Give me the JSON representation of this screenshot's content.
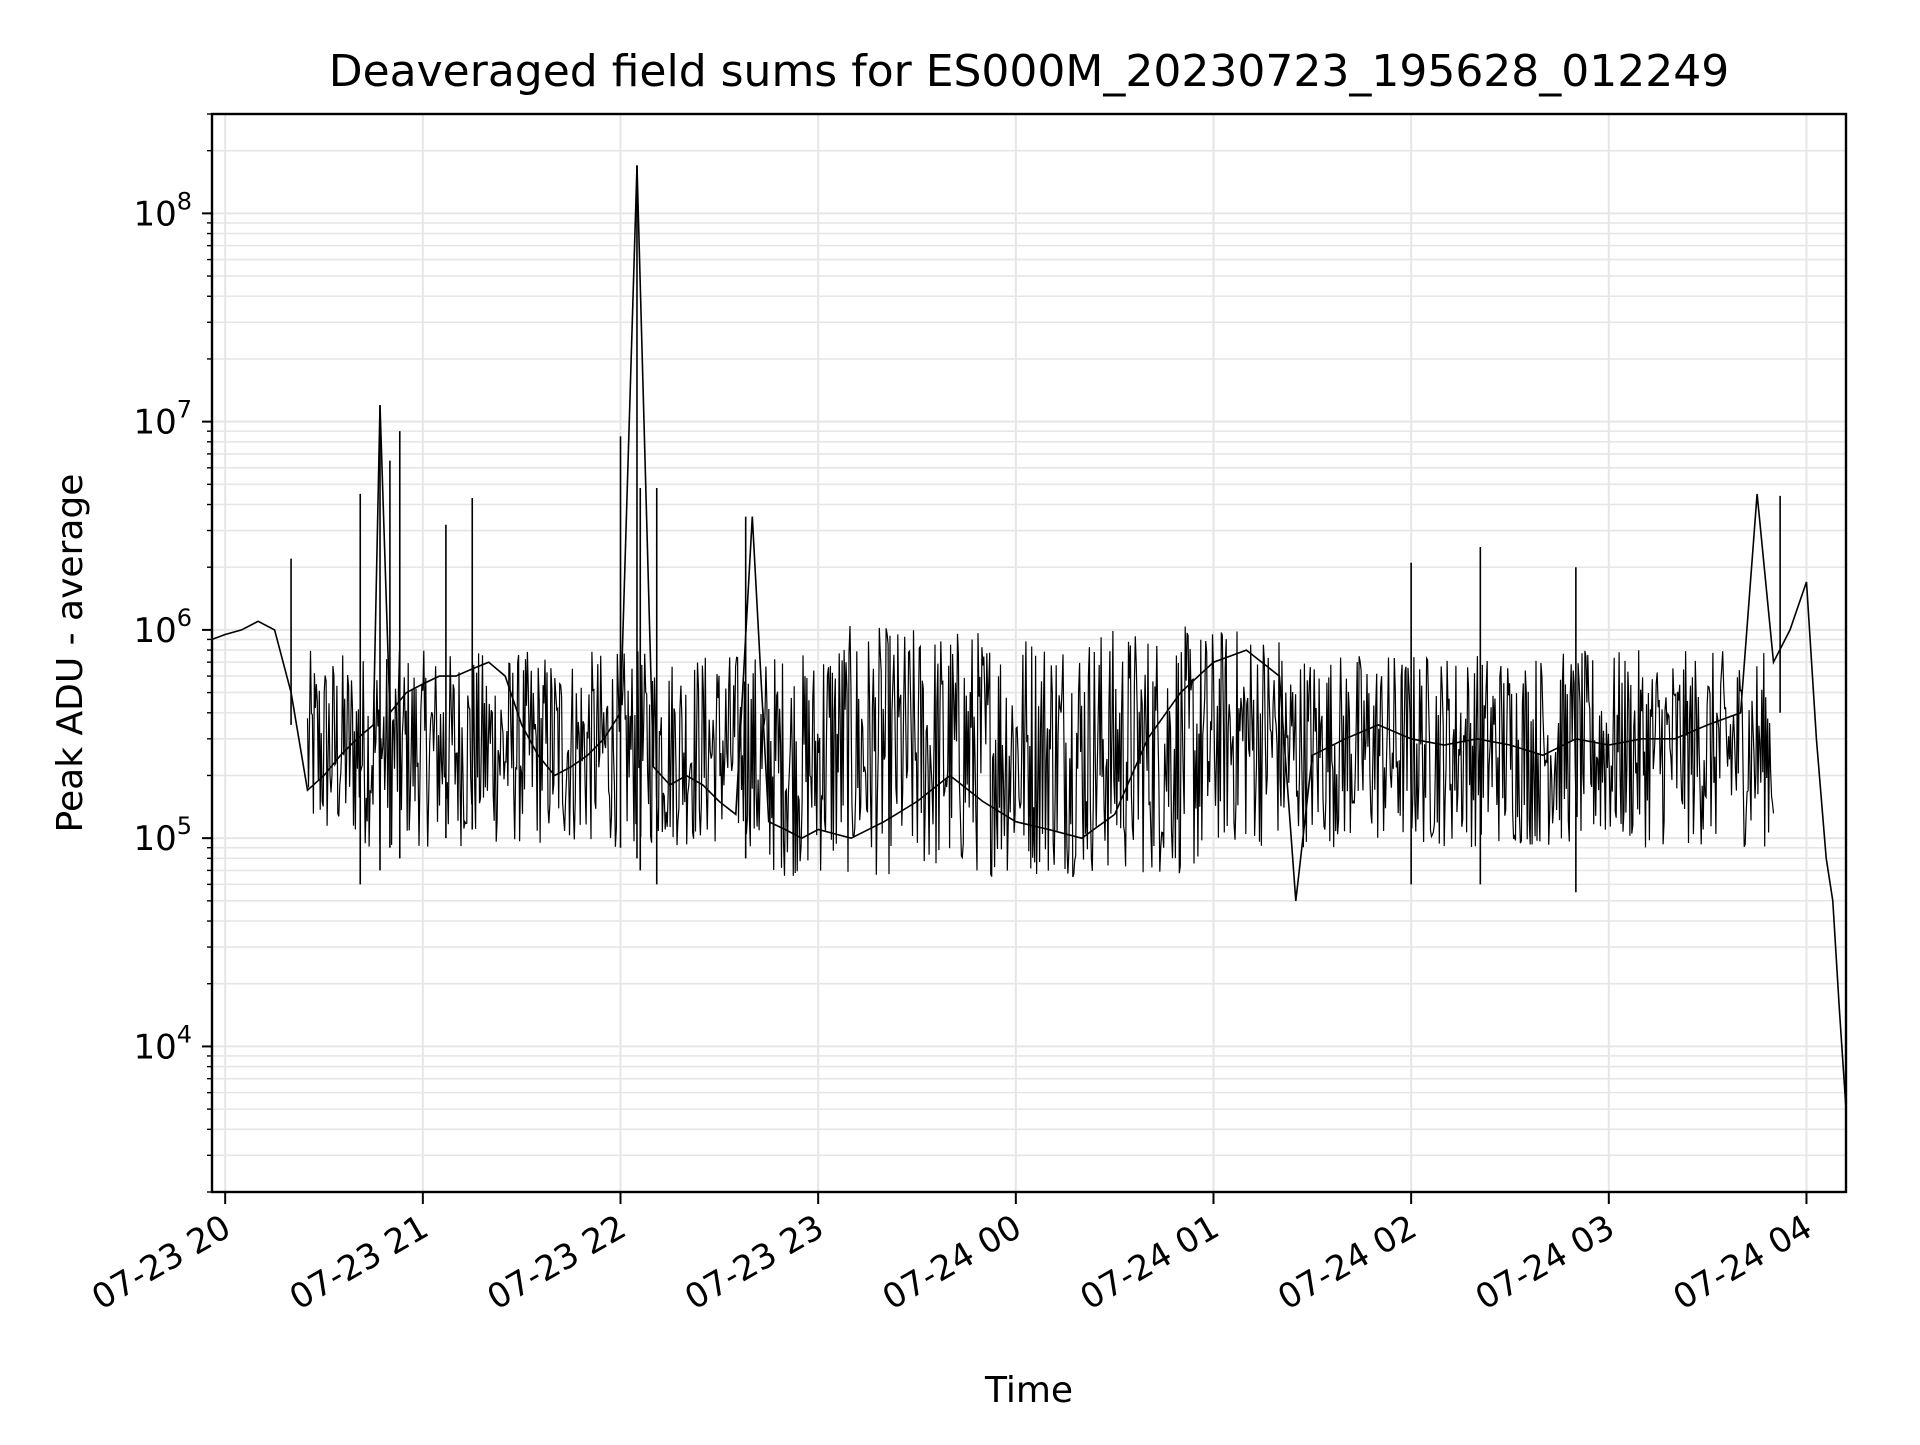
{
  "chart_data": {
    "type": "line",
    "title": "Deaveraged field sums for ES000M_20230723_195628_012249",
    "xlabel": "Time",
    "ylabel": "Peak ADU - average",
    "yscale": "log",
    "ylim": [
      2000,
      300000000
    ],
    "xlim": [
      "2023-07-23 19:56",
      "2023-07-24 04:12"
    ],
    "x_ticks": [
      "07-23 20",
      "07-23 21",
      "07-23 22",
      "07-23 23",
      "07-24 00",
      "07-24 01",
      "07-24 02",
      "07-24 03",
      "07-24 04"
    ],
    "y_ticks": [
      {
        "base": "10",
        "exp": "4",
        "value": 10000
      },
      {
        "base": "10",
        "exp": "5",
        "value": 100000
      },
      {
        "base": "10",
        "exp": "6",
        "value": 1000000
      },
      {
        "base": "10",
        "exp": "7",
        "value": 10000000
      },
      {
        "base": "10",
        "exp": "8",
        "value": 100000000
      }
    ],
    "grid": true,
    "line_color": "#000000",
    "grid_color": "#e6e6e6",
    "series": [
      {
        "x": [
          "2023-07-23 19:56",
          "2023-07-23 20:00",
          "2023-07-23 20:05",
          "2023-07-23 20:10",
          "2023-07-23 20:15",
          "2023-07-23 20:20",
          "2023-07-23 20:25",
          "2023-07-23 20:30",
          "2023-07-23 20:35",
          "2023-07-23 20:40",
          "2023-07-23 20:45",
          "2023-07-23 20:47",
          "2023-07-23 20:50",
          "2023-07-23 20:55",
          "2023-07-23 21:00",
          "2023-07-23 21:05",
          "2023-07-23 21:10",
          "2023-07-23 21:15",
          "2023-07-23 21:20",
          "2023-07-23 21:25",
          "2023-07-23 21:30",
          "2023-07-23 21:35",
          "2023-07-23 21:40",
          "2023-07-23 21:45",
          "2023-07-23 21:50",
          "2023-07-23 21:55",
          "2023-07-23 22:00",
          "2023-07-23 22:05",
          "2023-07-23 22:10",
          "2023-07-23 22:15",
          "2023-07-23 22:20",
          "2023-07-23 22:25",
          "2023-07-23 22:30",
          "2023-07-23 22:35",
          "2023-07-23 22:40",
          "2023-07-23 22:45",
          "2023-07-23 22:50",
          "2023-07-23 22:55",
          "2023-07-23 23:00",
          "2023-07-23 23:10",
          "2023-07-23 23:20",
          "2023-07-23 23:30",
          "2023-07-23 23:40",
          "2023-07-23 23:50",
          "2023-07-24 00:00",
          "2023-07-24 00:10",
          "2023-07-24 00:20",
          "2023-07-24 00:30",
          "2023-07-24 00:40",
          "2023-07-24 00:50",
          "2023-07-24 01:00",
          "2023-07-24 01:10",
          "2023-07-24 01:20",
          "2023-07-24 01:25",
          "2023-07-24 01:30",
          "2023-07-24 01:40",
          "2023-07-24 01:50",
          "2023-07-24 02:00",
          "2023-07-24 02:10",
          "2023-07-24 02:20",
          "2023-07-24 02:30",
          "2023-07-24 02:40",
          "2023-07-24 02:50",
          "2023-07-24 03:00",
          "2023-07-24 03:10",
          "2023-07-24 03:20",
          "2023-07-24 03:30",
          "2023-07-24 03:40",
          "2023-07-24 03:45",
          "2023-07-24 03:50",
          "2023-07-24 03:55",
          "2023-07-24 04:00",
          "2023-07-24 04:03",
          "2023-07-24 04:06",
          "2023-07-24 04:08",
          "2023-07-24 04:10",
          "2023-07-24 04:12"
        ],
        "y": [
          900000,
          950000,
          1000000,
          1100000,
          1000000,
          500000,
          170000,
          200000,
          250000,
          300000,
          350000,
          12000000,
          400000,
          500000,
          550000,
          600000,
          600000,
          650000,
          700000,
          600000,
          350000,
          250000,
          200000,
          220000,
          250000,
          300000,
          400000,
          170000000,
          220000,
          180000,
          200000,
          180000,
          150000,
          130000,
          3500000,
          120000,
          110000,
          100000,
          110000,
          100000,
          120000,
          150000,
          200000,
          150000,
          120000,
          110000,
          100000,
          130000,
          300000,
          500000,
          700000,
          800000,
          600000,
          50000,
          250000,
          300000,
          350000,
          300000,
          280000,
          300000,
          280000,
          250000,
          300000,
          280000,
          300000,
          300000,
          350000,
          400000,
          4500000,
          700000,
          1000000,
          1700000,
          300000,
          80000,
          50000,
          15000,
          5000
        ]
      }
    ],
    "spikes": [
      {
        "x": "2023-07-23 20:47",
        "y": 12000000,
        "floor": 70000
      },
      {
        "x": "2023-07-23 20:53",
        "y": 9000000,
        "floor": 80000
      },
      {
        "x": "2023-07-23 20:41",
        "y": 4500000,
        "floor": 60000
      },
      {
        "x": "2023-07-23 20:50",
        "y": 6500000,
        "floor": 90000
      },
      {
        "x": "2023-07-23 21:15",
        "y": 4300000,
        "floor": 110000
      },
      {
        "x": "2023-07-23 21:07",
        "y": 3200000,
        "floor": 100000
      },
      {
        "x": "2023-07-23 22:00",
        "y": 8500000,
        "floor": 90000
      },
      {
        "x": "2023-07-23 22:05",
        "y": 170000000,
        "floor": 80000
      },
      {
        "x": "2023-07-23 22:06",
        "y": 4800000,
        "floor": 70000
      },
      {
        "x": "2023-07-23 22:11",
        "y": 4800000,
        "floor": 60000
      },
      {
        "x": "2023-07-23 22:38",
        "y": 3500000,
        "floor": 80000
      },
      {
        "x": "2023-07-23 20:20",
        "y": 2200000,
        "floor": 350000
      },
      {
        "x": "2023-07-24 02:00",
        "y": 2100000,
        "floor": 60000
      },
      {
        "x": "2023-07-24 02:21",
        "y": 2500000,
        "floor": 60000
      },
      {
        "x": "2023-07-24 02:50",
        "y": 2000000,
        "floor": 55000
      },
      {
        "x": "2023-07-24 03:52",
        "y": 4400000,
        "floor": 400000
      }
    ]
  }
}
